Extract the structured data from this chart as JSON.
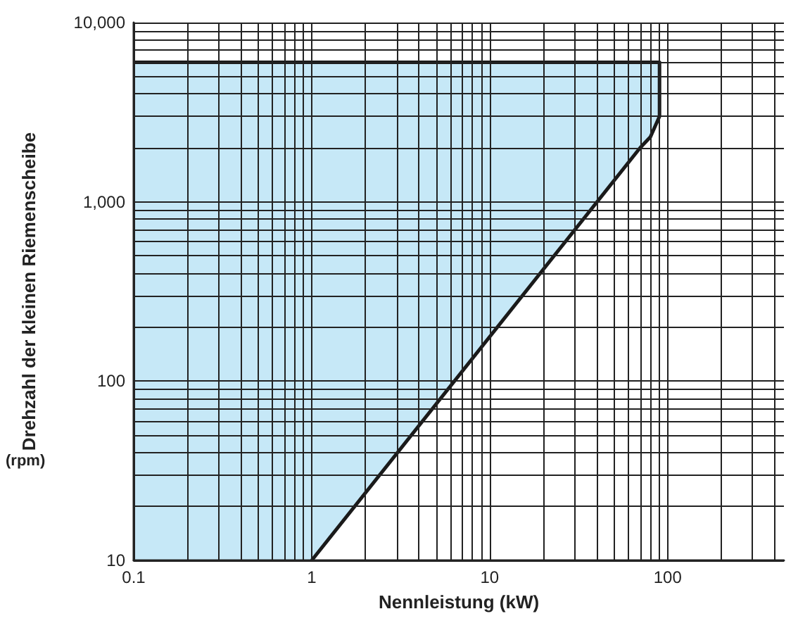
{
  "chart_data": {
    "type": "area",
    "xlabel": "Nennleistung (kW)",
    "ylabel": "Drehzahl der kleinen Riemenscheibe",
    "annotations": [
      "(rpm)"
    ],
    "log": "xy",
    "grid": true,
    "marker": "none",
    "line_style": "solid",
    "xlim": [
      0.1,
      450
    ],
    "ylim": [
      10,
      10000
    ],
    "xticks": [
      0.1,
      {
        "value": 0.2,
        "label": null
      },
      {
        "value": 0.3,
        "label": null
      },
      {
        "value": 0.4,
        "label": null
      },
      {
        "value": 0.5,
        "label": null
      },
      {
        "value": 0.6,
        "label": null
      },
      {
        "value": 0.7,
        "label": null
      },
      {
        "value": 0.8,
        "label": null
      },
      {
        "value": 0.9,
        "label": null
      },
      1,
      {
        "value": 2,
        "label": null
      },
      {
        "value": 3,
        "label": null
      },
      {
        "value": 4,
        "label": null
      },
      {
        "value": 5,
        "label": null
      },
      {
        "value": 6,
        "label": null
      },
      {
        "value": 7,
        "label": null
      },
      {
        "value": 8,
        "label": null
      },
      {
        "value": 9,
        "label": null
      },
      10,
      {
        "value": 20,
        "label": null
      },
      {
        "value": 30,
        "label": null
      },
      {
        "value": 40,
        "label": null
      },
      {
        "value": 50,
        "label": null
      },
      {
        "value": 60,
        "label": null
      },
      {
        "value": 70,
        "label": null
      },
      {
        "value": 80,
        "label": null
      },
      {
        "value": 90,
        "label": null
      },
      100,
      {
        "value": 200,
        "label": null
      },
      {
        "value": 300,
        "label": null
      },
      {
        "value": 400,
        "label": null
      }
    ],
    "yticks": [
      10,
      {
        "value": 20,
        "label": null
      },
      {
        "value": 30,
        "label": null
      },
      {
        "value": 40,
        "label": null
      },
      {
        "value": 50,
        "label": null
      },
      {
        "value": 60,
        "label": null
      },
      {
        "value": 70,
        "label": null
      },
      {
        "value": 80,
        "label": null
      },
      {
        "value": 90,
        "label": null
      },
      100,
      {
        "value": 200,
        "label": null
      },
      {
        "value": 300,
        "label": null
      },
      {
        "value": 400,
        "label": null
      },
      {
        "value": 500,
        "label": null
      },
      {
        "value": 600,
        "label": null
      },
      {
        "value": 700,
        "label": null
      },
      {
        "value": 800,
        "label": null
      },
      {
        "value": 900,
        "label": null
      },
      {
        "value": 1000,
        "label": "1,000"
      },
      {
        "value": 2000,
        "label": null
      },
      {
        "value": 3000,
        "label": null
      },
      {
        "value": 4000,
        "label": null
      },
      {
        "value": 5000,
        "label": null
      },
      {
        "value": 6000,
        "label": null
      },
      {
        "value": 7000,
        "label": null
      },
      {
        "value": 8000,
        "label": null
      },
      {
        "value": 9000,
        "label": null
      },
      {
        "value": 10000,
        "label": "10,000"
      }
    ],
    "series": [
      {
        "color": "#c6e8f7",
        "x": [
          0.1,
          90,
          90,
          80,
          70,
          1
        ],
        "values": [
          6000,
          6000,
          3000,
          2300,
          2000,
          10
        ]
      }
    ]
  }
}
